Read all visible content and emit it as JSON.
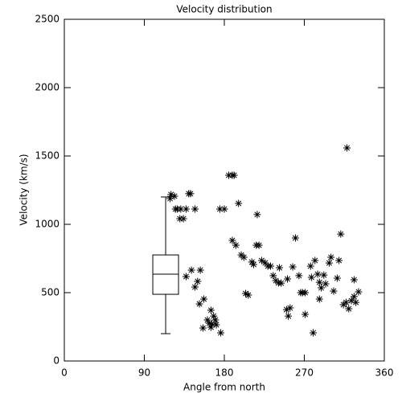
{
  "chart_data": {
    "type": "scatter",
    "title": "Velocity distribution",
    "x_label": "Angle from north",
    "y_label": "Velocity (km/s)",
    "xlim": [
      0,
      360
    ],
    "xticks": [
      0,
      90,
      180,
      270,
      360
    ],
    "ylim": [
      0,
      2500
    ],
    "yticks": [
      0,
      500,
      1000,
      1500,
      2000,
      2500
    ],
    "color": "#000000",
    "x": [
      120,
      124,
      119,
      127,
      131,
      125,
      130,
      134,
      140,
      142,
      137,
      147,
      137,
      143,
      147,
      150,
      153,
      152,
      157,
      156,
      161,
      163,
      165,
      165,
      168,
      170,
      171,
      166,
      176,
      175,
      180,
      185,
      189,
      191,
      189,
      193,
      196,
      199,
      202,
      204,
      207,
      211,
      213,
      216,
      219,
      217,
      222,
      226,
      229,
      232,
      235,
      238,
      242,
      241,
      244,
      250,
      252,
      254,
      251,
      257,
      260,
      264,
      266,
      268,
      271,
      271,
      277,
      278,
      280,
      282,
      285,
      287,
      287,
      289,
      292,
      294,
      298,
      300,
      303,
      307,
      309,
      311,
      314,
      317,
      318,
      320,
      323,
      326,
      326,
      328,
      331
    ],
    "values": [
      1218,
      1206,
      1188,
      1112,
      1112,
      1112,
      1041,
      1041,
      1224,
      1224,
      1112,
      1112,
      618,
      665,
      541,
      582,
      665,
      418,
      453,
      241,
      300,
      276,
      371,
      247,
      329,
      300,
      265,
      271,
      206,
      1112,
      1112,
      1359,
      1359,
      1359,
      882,
      847,
      1153,
      776,
      759,
      494,
      482,
      724,
      706,
      847,
      847,
      1071,
      735,
      718,
      694,
      694,
      624,
      588,
      682,
      571,
      570,
      376,
      329,
      388,
      600,
      688,
      900,
      624,
      500,
      500,
      341,
      500,
      694,
      612,
      206,
      735,
      635,
      576,
      453,
      535,
      629,
      565,
      717,
      759,
      512,
      606,
      735,
      929,
      412,
      429,
      1559,
      382,
      441,
      594,
      471,
      429,
      506
    ],
    "box": {
      "x": 114,
      "min": 200,
      "q1": 488,
      "median": 635,
      "q3": 776,
      "max": 1200
    }
  }
}
